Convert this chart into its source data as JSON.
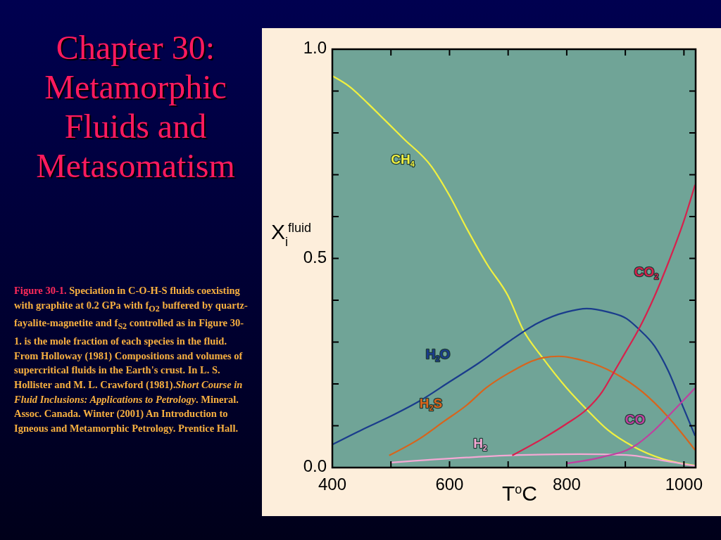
{
  "chart_data": {
    "type": "line",
    "title": "Chapter 30: Metamorphic Fluids and Metasomatism",
    "xlabel": "T$^{o}$C",
    "ylabel": "X$_{i}$$^{fluid}$",
    "annotations": [
      "Figure 30-1.",
      "Speciation in C-O-H-S fluids coexisting with graphite at 0.2 GPa with f$_{O2}$ buffered by quartz-fayalite-magnetite and f$_{S2}$ controlled as in Figure 30-1. is the mole fraction of each species in the fluid. From Holloway (1981) Compositions and volumes of supercritical fluids in the Earth's crust. In L. S. Hollister and M. L. Crawford (1981).",
      "Short Course in Fluid Inclusions: Applications to Petrology",
      ". Mineral. Assoc. Canada. Winter (2001) An Introduction to Igneous and Metamorphic Petrology. Prentice Hall."
    ],
    "xlim": [
      400,
      1020
    ],
    "ylim": [
      0,
      1
    ],
    "xticks": [
      400,
      {
        "value": 500,
        "label": null
      },
      600,
      {
        "value": 700,
        "label": null
      },
      800,
      {
        "value": 900,
        "label": null
      },
      1000
    ],
    "yticks": [
      {
        "value": 0,
        "label": "0.0"
      },
      {
        "value": 0.1,
        "label": null
      },
      {
        "value": 0.2,
        "label": null
      },
      {
        "value": 0.3,
        "label": null
      },
      {
        "value": 0.4,
        "label": null
      },
      {
        "value": 0.5,
        "label": "0.5"
      },
      {
        "value": 0.6,
        "label": null
      },
      {
        "value": 0.7,
        "label": null
      },
      {
        "value": 0.8,
        "label": null
      },
      {
        "value": 0.9,
        "label": null
      },
      {
        "value": 1,
        "label": "1.0"
      }
    ],
    "series": [
      {
        "name": "CH$_{4}$",
        "color": "#f0f040",
        "x": [
          400,
          430,
          461,
          490,
          521,
          569,
          600,
          630,
          665,
          700,
          726,
          758,
          800,
          834,
          870,
          914,
          965,
          1019
        ],
        "values": [
          0.936,
          0.91,
          0.87,
          0.83,
          0.787,
          0.72,
          0.65,
          0.57,
          0.484,
          0.41,
          0.328,
          0.264,
          0.19,
          0.139,
          0.09,
          0.05,
          0.02,
          0.005
        ]
      },
      {
        "name": "H$_{2}$O",
        "color": "#1a3c8c",
        "x": [
          400,
          450,
          500,
          550,
          600,
          650,
          700,
          750,
          800,
          834,
          870,
          902,
          923,
          950,
          973,
          1000,
          1019
        ],
        "values": [
          0.055,
          0.09,
          0.123,
          0.16,
          0.205,
          0.25,
          0.3,
          0.345,
          0.372,
          0.38,
          0.372,
          0.356,
          0.331,
          0.29,
          0.232,
          0.14,
          0.076
        ]
      },
      {
        "name": "H$_{2}$S",
        "color": "#d8641c",
        "x": [
          497,
          550,
          589,
          630,
          662,
          700,
          758,
          786,
          830,
          880,
          930,
          973,
          1019
        ],
        "values": [
          0.029,
          0.07,
          0.109,
          0.15,
          0.19,
          0.225,
          0.262,
          0.266,
          0.255,
          0.227,
          0.18,
          0.121,
          0.042
        ]
      },
      {
        "name": "H$_{2}$",
        "color": "#f4a8d4",
        "x": [
          500,
          629,
          720,
          822,
          902,
          960,
          1019
        ],
        "values": [
          0.012,
          0.024,
          0.03,
          0.032,
          0.03,
          0.018,
          0.004
        ]
      },
      {
        "name": "CO$_{2}$",
        "color": "#d8204c",
        "x": [
          707,
          760,
          800,
          834,
          860,
          880,
          900,
          923,
          950,
          974,
          1000,
          1019
        ],
        "values": [
          0.029,
          0.07,
          0.105,
          0.139,
          0.18,
          0.227,
          0.275,
          0.331,
          0.41,
          0.492,
          0.59,
          0.676
        ]
      },
      {
        "name": "CO",
        "color": "#c040a0",
        "x": [
          800,
          860,
          914,
          950,
          985,
          1019
        ],
        "values": [
          0.01,
          0.025,
          0.05,
          0.09,
          0.14,
          0.19
        ]
      }
    ]
  }
}
